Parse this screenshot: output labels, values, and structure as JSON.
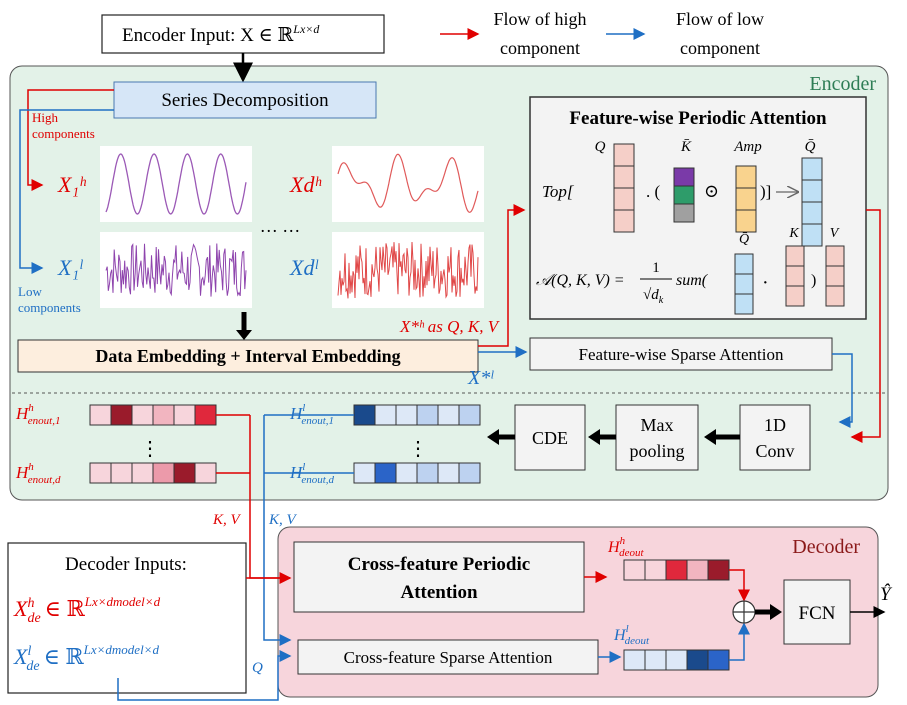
{
  "encoder_input": "Encoder Input: X ∈ ℝ",
  "encoder_input_sup": "Lx×d",
  "legend": {
    "high_line1": "Flow of high",
    "high_line2": "component",
    "low_line1": "Flow of low",
    "low_line2": "component",
    "high_color": "#e00000",
    "low_color": "#1f6fc4"
  },
  "encoder": {
    "title": "Encoder",
    "series_decomposition": "Series Decomposition",
    "high_components_1": "High",
    "high_components_2": "components",
    "low_components_1": "Low",
    "low_components_2": "components",
    "x1h": "X₁ʰ",
    "xdh": "Xdʰ",
    "x1l": "X₁ˡ",
    "xdl": "Xdˡ",
    "dots": "… …",
    "data_embedding": "Data Embedding + Interval Embedding",
    "xstar_h": "X*ʰ",
    "xstar_h_as": "as Q, K, V",
    "xstar_l": "X*ˡ",
    "fpa_title": "Feature-wise Periodic Attention",
    "fpa_q": "Q",
    "fpa_kbar": "K̄",
    "fpa_amp": "Amp",
    "fpa_qbar": "Q̄",
    "fpa_top": "Top[",
    "fpa_dot": ". (",
    "fpa_odot": "⊙",
    "fpa_close": ")]",
    "fpa_formula": "𝒜(Q, K, V) =",
    "fpa_one": "1",
    "fpa_sqrt": "√d",
    "fpa_sqrt_sub": "k",
    "fpa_sum": "sum(",
    "fpa_dot2": "·",
    "fpa_close2": ")",
    "fpa_qbar2": "Q̄",
    "fpa_k2": "K",
    "fpa_v2": "V",
    "fsa": "Feature-wise Sparse Attention",
    "conv_1": "1D",
    "conv_2": "Conv",
    "maxpool_1": "Max",
    "maxpool_2": "pooling",
    "cde": "CDE",
    "h_enout_1": "H",
    "h_enout_1_sup": "h",
    "h_enout_1_sub": "enout,1",
    "h_enout_d_sub": "enout,d",
    "l_enout_1_sup": "l",
    "vdots": "⋮"
  },
  "kv_red": "K, V",
  "kv_blue": "K, V",
  "q_red": "Q",
  "q_blue": "Q",
  "decoder": {
    "title": "Decoder",
    "inputs_title": "Decoder Inputs:",
    "xde_h": "X",
    "xde_h_sup": "h",
    "xde_sub": "de",
    "xde_rhs": "∈ ℝ",
    "xde_rhs_sup": "Lx×dmodel×d",
    "xde_l_sup": "l",
    "cfpa_1": "Cross-feature Periodic",
    "cfpa_2": "Attention",
    "cfsa": "Cross-feature Sparse Attention",
    "h_deout": "H",
    "h_deout_sub": "deout",
    "fcn": "FCN",
    "yhat": "Ŷ",
    "oplus": "⊕"
  },
  "colors": {
    "encoder_bg": "#e3f2e8",
    "decoder_bg": "#f7d5dc",
    "embed_bg": "#fdeede",
    "decomp_bg": "#d6e6f7",
    "fpa_bg": "#f3f3f3"
  }
}
